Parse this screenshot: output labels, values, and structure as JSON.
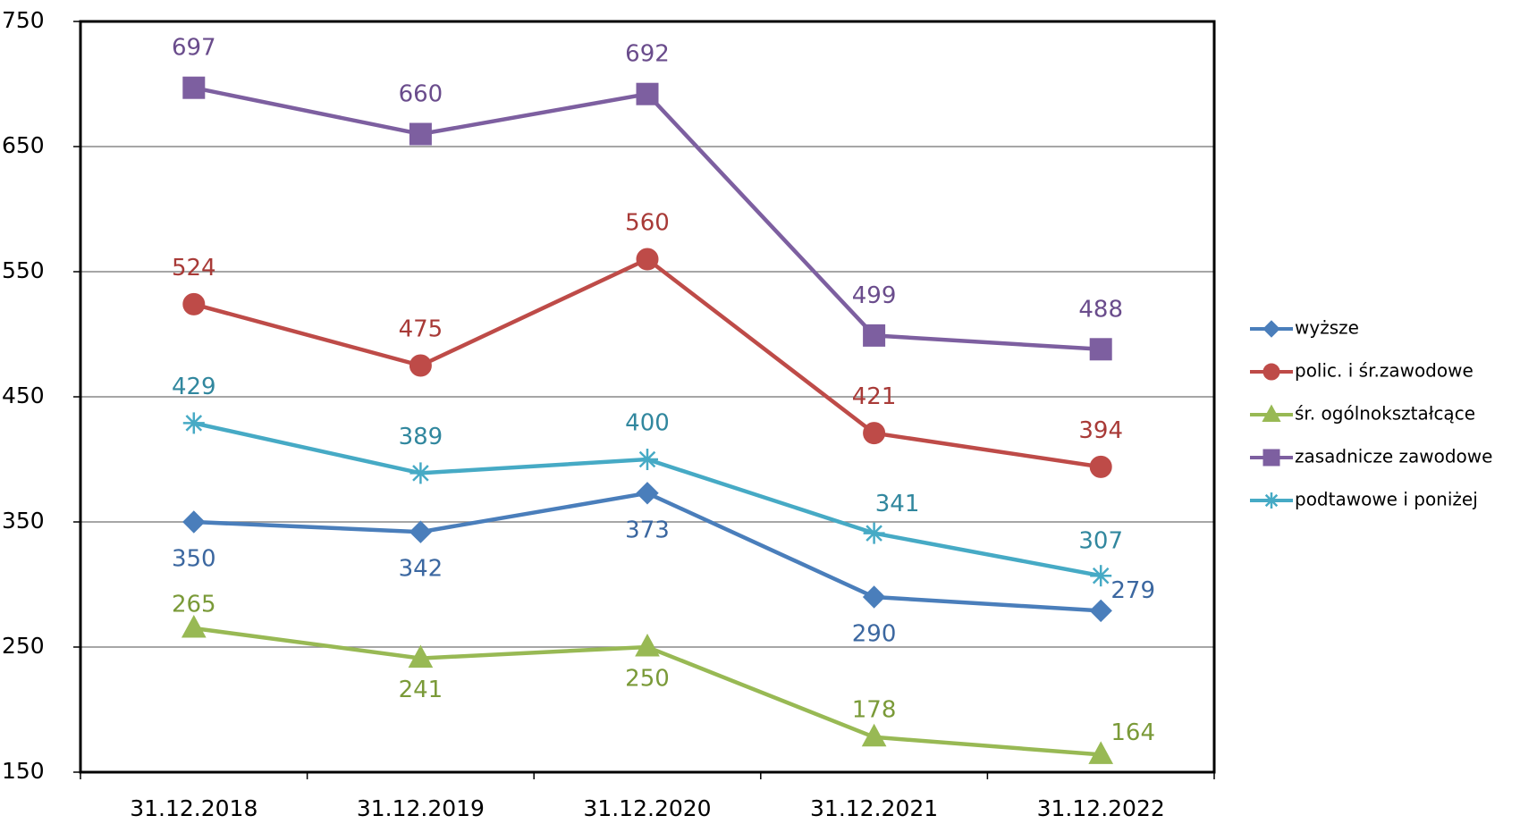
{
  "chart_data": {
    "type": "line",
    "categories": [
      "31.12.2018",
      "31.12.2019",
      "31.12.2020",
      "31.12.2021",
      "31.12.2022"
    ],
    "series": [
      {
        "name": "wyższe",
        "color": "#4a7ebb",
        "marker": "diamond",
        "values": [
          350,
          342,
          373,
          290,
          279
        ]
      },
      {
        "name": "polic. i śr.zawodowe",
        "color": "#be4b48",
        "marker": "circle",
        "values": [
          524,
          475,
          560,
          421,
          394
        ]
      },
      {
        "name": "śr. ogólnokształcące",
        "color": "#98b954",
        "marker": "triangle",
        "values": [
          265,
          241,
          250,
          178,
          164
        ]
      },
      {
        "name": "zasadnicze zawodowe",
        "color": "#7d5fa0",
        "marker": "square",
        "values": [
          697,
          660,
          692,
          499,
          488
        ]
      },
      {
        "name": "podtawowe i poniżej",
        "color": "#46aac5",
        "marker": "star",
        "values": [
          429,
          389,
          400,
          341,
          307
        ]
      }
    ],
    "ylim": [
      150,
      750
    ],
    "yticks": [
      150,
      250,
      350,
      450,
      550,
      650,
      750
    ],
    "grid": true,
    "legend": "right"
  }
}
